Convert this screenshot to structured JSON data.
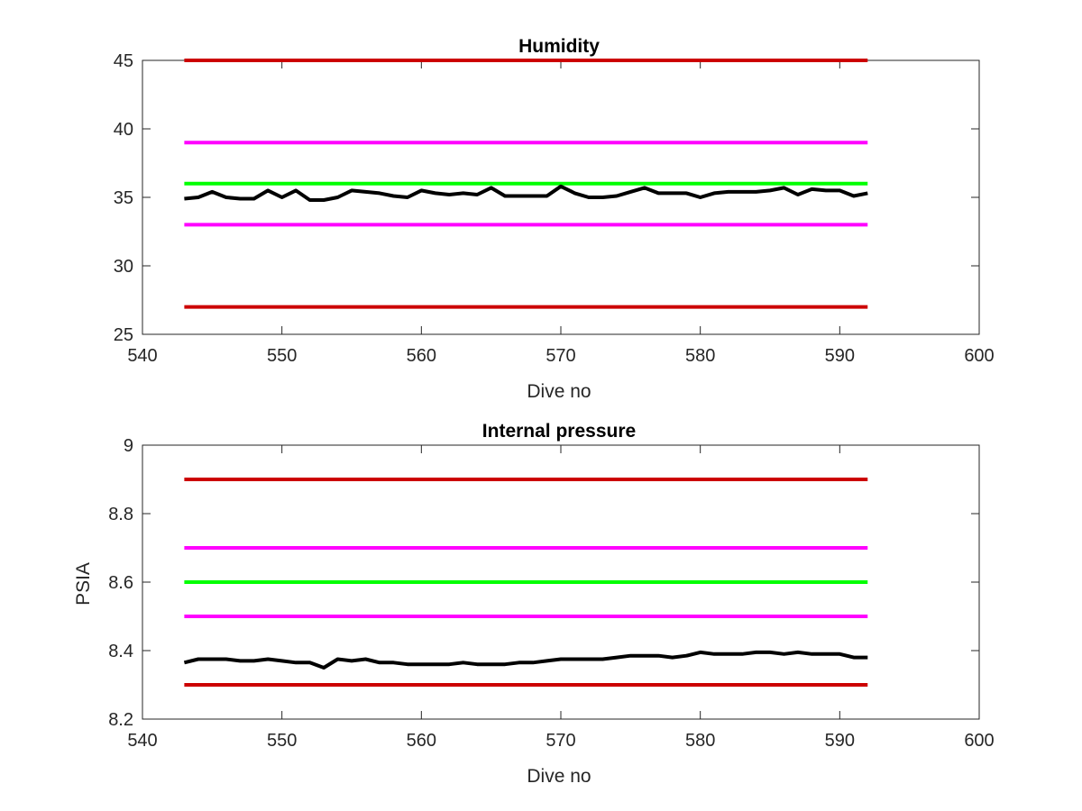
{
  "colors": {
    "red": "#cc0000",
    "magenta": "#ff00ff",
    "green": "#00ff00",
    "data": "#000000",
    "axes": "#262626"
  },
  "chart_data": [
    {
      "type": "line",
      "title": "Humidity",
      "xlabel": "Dive no",
      "ylabel": "",
      "xlim": [
        540,
        600
      ],
      "ylim": [
        25,
        45
      ],
      "xticks": [
        "540",
        "550",
        "560",
        "570",
        "580",
        "590",
        "600"
      ],
      "yticks": [
        "25",
        "30",
        "35",
        "40",
        "45"
      ],
      "grid": false,
      "reference_lines": [
        {
          "y": 45,
          "x": [
            543,
            592
          ],
          "color": "red"
        },
        {
          "y": 39,
          "x": [
            543,
            592
          ],
          "color": "magenta"
        },
        {
          "y": 36,
          "x": [
            543,
            592
          ],
          "color": "green"
        },
        {
          "y": 33,
          "x": [
            543,
            592
          ],
          "color": "magenta"
        },
        {
          "y": 27,
          "x": [
            543,
            592
          ],
          "color": "red"
        }
      ],
      "series": [
        {
          "color": "data",
          "x": [
            543,
            544,
            545,
            546,
            547,
            548,
            549,
            550,
            551,
            552,
            553,
            554,
            555,
            556,
            557,
            558,
            559,
            560,
            561,
            562,
            563,
            564,
            565,
            566,
            567,
            568,
            569,
            570,
            571,
            572,
            573,
            574,
            575,
            576,
            577,
            578,
            579,
            580,
            581,
            582,
            583,
            584,
            585,
            586,
            587,
            588,
            589,
            590,
            591,
            592
          ],
          "y": [
            34.9,
            35.0,
            35.4,
            35.0,
            34.9,
            34.9,
            35.5,
            35.0,
            35.5,
            34.8,
            34.8,
            35.0,
            35.5,
            35.4,
            35.3,
            35.1,
            35.0,
            35.5,
            35.3,
            35.2,
            35.3,
            35.2,
            35.7,
            35.1,
            35.1,
            35.1,
            35.1,
            35.8,
            35.3,
            35.0,
            35.0,
            35.1,
            35.4,
            35.7,
            35.3,
            35.3,
            35.3,
            35.0,
            35.3,
            35.4,
            35.4,
            35.4,
            35.5,
            35.7,
            35.2,
            35.6,
            35.5,
            35.5,
            35.1,
            35.3
          ]
        }
      ]
    },
    {
      "type": "line",
      "title": "Internal pressure",
      "xlabel": "Dive no",
      "ylabel": "PSIA",
      "xlim": [
        540,
        600
      ],
      "ylim": [
        8.2,
        9
      ],
      "xticks": [
        "540",
        "550",
        "560",
        "570",
        "580",
        "590",
        "600"
      ],
      "yticks": [
        "8.2",
        "8.4",
        "8.6",
        "8.8",
        "9"
      ],
      "grid": false,
      "reference_lines": [
        {
          "y": 8.9,
          "x": [
            543,
            592
          ],
          "color": "red"
        },
        {
          "y": 8.7,
          "x": [
            543,
            592
          ],
          "color": "magenta"
        },
        {
          "y": 8.6,
          "x": [
            543,
            592
          ],
          "color": "green"
        },
        {
          "y": 8.5,
          "x": [
            543,
            592
          ],
          "color": "magenta"
        },
        {
          "y": 8.3,
          "x": [
            543,
            592
          ],
          "color": "red"
        }
      ],
      "series": [
        {
          "color": "data",
          "x": [
            543,
            544,
            545,
            546,
            547,
            548,
            549,
            550,
            551,
            552,
            553,
            554,
            555,
            556,
            557,
            558,
            559,
            560,
            561,
            562,
            563,
            564,
            565,
            566,
            567,
            568,
            569,
            570,
            571,
            572,
            573,
            574,
            575,
            576,
            577,
            578,
            579,
            580,
            581,
            582,
            583,
            584,
            585,
            586,
            587,
            588,
            589,
            590,
            591,
            592
          ],
          "y": [
            8.365,
            8.375,
            8.375,
            8.375,
            8.37,
            8.37,
            8.375,
            8.37,
            8.365,
            8.365,
            8.35,
            8.375,
            8.37,
            8.375,
            8.365,
            8.365,
            8.36,
            8.36,
            8.36,
            8.36,
            8.365,
            8.36,
            8.36,
            8.36,
            8.365,
            8.365,
            8.37,
            8.375,
            8.375,
            8.375,
            8.375,
            8.38,
            8.385,
            8.385,
            8.385,
            8.38,
            8.385,
            8.395,
            8.39,
            8.39,
            8.39,
            8.395,
            8.395,
            8.39,
            8.395,
            8.39,
            8.39,
            8.39,
            8.38,
            8.38
          ]
        }
      ]
    }
  ]
}
